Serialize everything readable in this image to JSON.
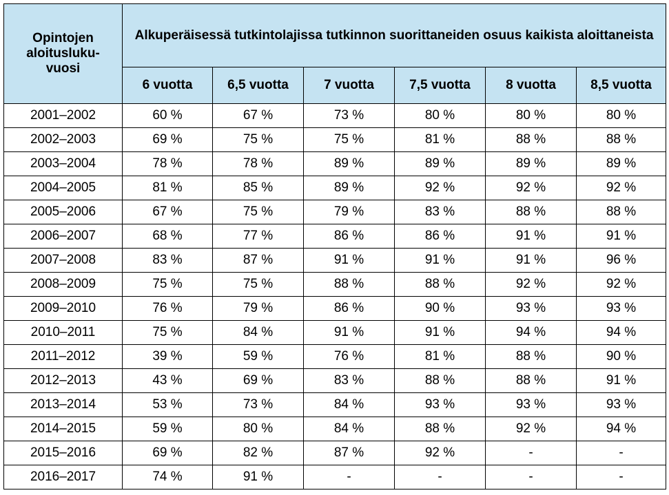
{
  "table": {
    "corner_header": "Opintojen aloitusluku-vuosi",
    "group_header": "Alkuperäisessä tutkintolajissa tutkinnon suorittaneiden osuus kaikista aloittaneista",
    "column_headers": [
      "6 vuotta",
      "6,5 vuotta",
      "7 vuotta",
      "7,5 vuotta",
      "8 vuotta",
      "8,5 vuotta"
    ],
    "rows": [
      [
        "2001–2002",
        "60 %",
        "67 %",
        "73 %",
        "80 %",
        "80 %",
        "80 %"
      ],
      [
        "2002–2003",
        "69 %",
        "75 %",
        "75 %",
        "81 %",
        "88 %",
        "88 %"
      ],
      [
        "2003–2004",
        "78 %",
        "78 %",
        "89 %",
        "89 %",
        "89 %",
        "89 %"
      ],
      [
        "2004–2005",
        "81 %",
        "85 %",
        "89 %",
        "92 %",
        "92 %",
        "92 %"
      ],
      [
        "2005–2006",
        "67 %",
        "75 %",
        "79 %",
        "83 %",
        "88 %",
        "88 %"
      ],
      [
        "2006–2007",
        "68 %",
        "77 %",
        "86 %",
        "86 %",
        "91 %",
        "91 %"
      ],
      [
        "2007–2008",
        "83 %",
        "87 %",
        "91 %",
        "91 %",
        "91 %",
        "96 %"
      ],
      [
        "2008–2009",
        "75 %",
        "75 %",
        "88 %",
        "88 %",
        "92 %",
        "92 %"
      ],
      [
        "2009–2010",
        "76 %",
        "79 %",
        "86 %",
        "90 %",
        "93 %",
        "93 %"
      ],
      [
        "2010–2011",
        "75 %",
        "84 %",
        "91 %",
        "91 %",
        "94 %",
        "94 %"
      ],
      [
        "2011–2012",
        "39 %",
        "59 %",
        "76 %",
        "81 %",
        "88 %",
        "90 %"
      ],
      [
        "2012–2013",
        "43 %",
        "69 %",
        "83 %",
        "88 %",
        "88 %",
        "91 %"
      ],
      [
        "2013–2014",
        "53 %",
        "73 %",
        "84 %",
        "93 %",
        "93 %",
        "93 %"
      ],
      [
        "2014–2015",
        "59 %",
        "80 %",
        "84 %",
        "88 %",
        "92 %",
        "94 %"
      ],
      [
        "2015–2016",
        "69 %",
        "82 %",
        "87 %",
        "92 %",
        "-",
        "-"
      ],
      [
        "2016–2017",
        "74 %",
        "91 %",
        "-",
        "-",
        "-",
        "-"
      ]
    ]
  }
}
